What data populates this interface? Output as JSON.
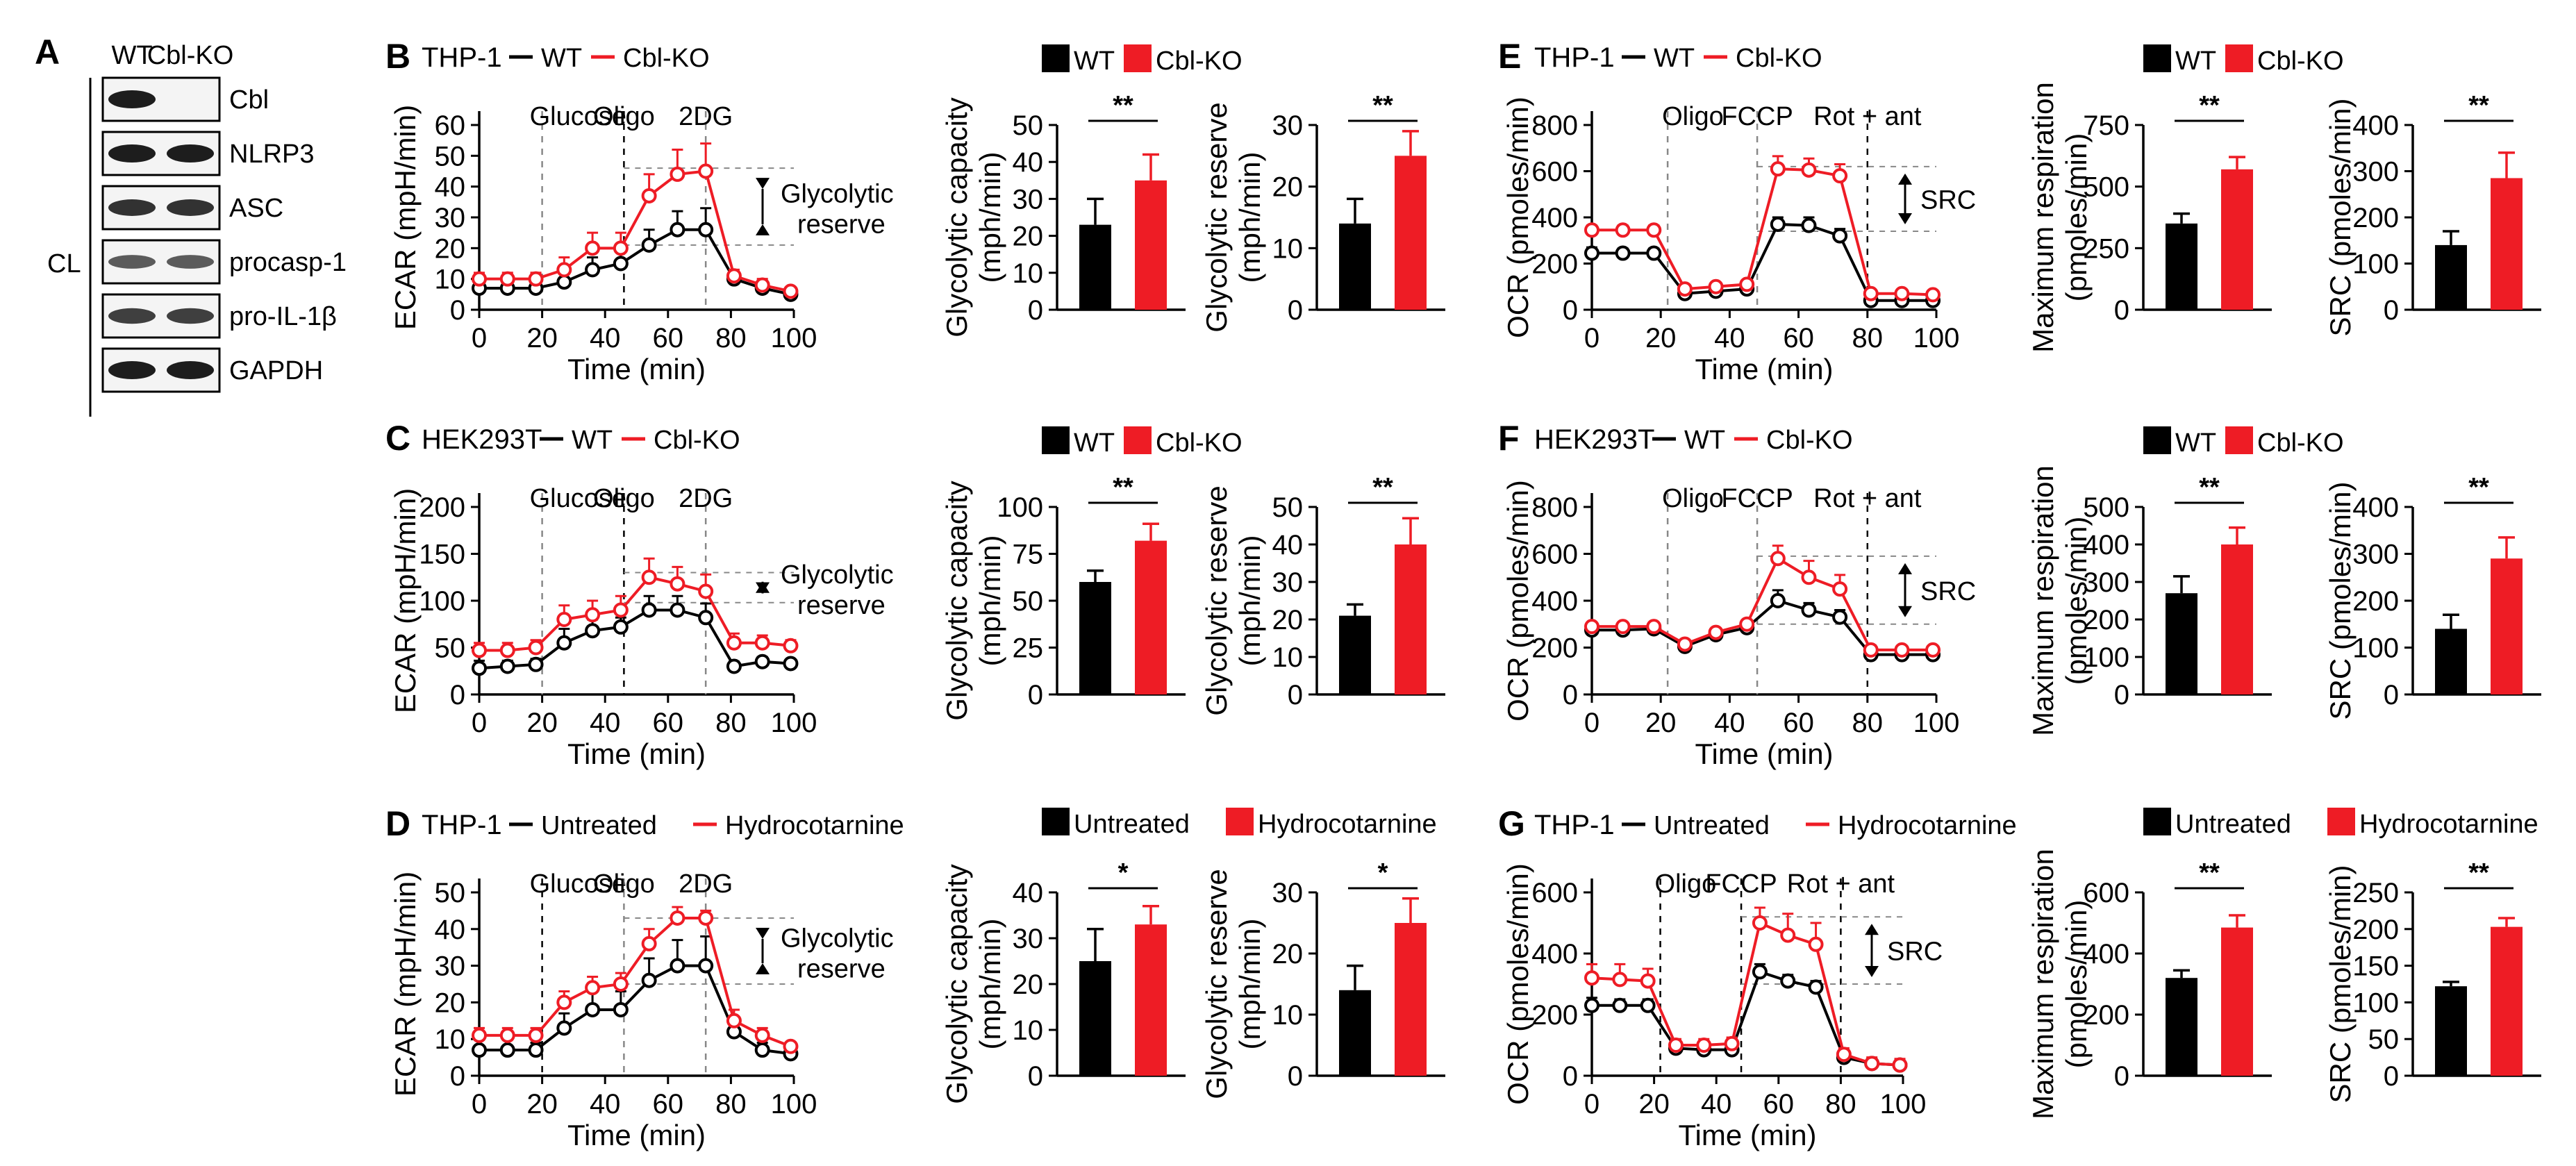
{
  "colors": {
    "wt": "#000000",
    "ko": "#ee1c25",
    "bg": "#ffffff",
    "guide": "#888888"
  },
  "panel_a": {
    "letter": "A",
    "lanes": [
      "WT",
      "Cbl-KO"
    ],
    "side_label": "CL",
    "rows": [
      {
        "label": "Cbl",
        "wt": 1.0,
        "ko": 0.0
      },
      {
        "label": "NLRP3",
        "wt": 1.0,
        "ko": 1.0
      },
      {
        "label": "ASC",
        "wt": 0.85,
        "ko": 0.85
      },
      {
        "label": "procasp-1",
        "wt": 0.55,
        "ko": 0.55
      },
      {
        "label": "pro-IL-1β",
        "wt": 0.75,
        "ko": 0.75
      },
      {
        "label": "GAPDH",
        "wt": 1.0,
        "ko": 1.0
      }
    ]
  },
  "chart_data": [
    {
      "type": "line",
      "id": "B",
      "letter": "B",
      "cell": "THP-1",
      "series_names": [
        "WT",
        "Cbl-KO"
      ],
      "xlabel": "Time (min)",
      "ylabel": "ECAR (mpH/min)",
      "xticks": [
        0,
        20,
        40,
        60,
        80,
        100
      ],
      "yticks": [
        0,
        10,
        20,
        30,
        40,
        50,
        60
      ],
      "xlim": [
        0,
        100
      ],
      "ylim": [
        0,
        60
      ],
      "injections": [
        {
          "label": "Glucose",
          "x": 20,
          "style": "gray"
        },
        {
          "label": "Oligo",
          "x": 46,
          "style": "black"
        },
        {
          "label": "2DG",
          "x": 72,
          "style": "gray"
        }
      ],
      "x": [
        0,
        9,
        18,
        27,
        36,
        45,
        54,
        63,
        72,
        81,
        90,
        99
      ],
      "series": [
        {
          "name": "WT",
          "values": [
            7,
            7,
            7,
            9,
            13,
            15,
            21,
            26,
            26,
            10,
            7,
            5
          ],
          "err": [
            2,
            2,
            2,
            3,
            4,
            4,
            5,
            6,
            7,
            2,
            2,
            1
          ]
        },
        {
          "name": "Cbl-KO",
          "values": [
            10,
            10,
            10,
            13,
            20,
            20,
            37,
            44,
            45,
            11,
            8,
            6
          ],
          "err": [
            2,
            2,
            2,
            4,
            5,
            5,
            7,
            8,
            9,
            2,
            2,
            1
          ]
        }
      ],
      "guides": [
        46,
        21
      ],
      "annotation": [
        "Glycolytic",
        "reserve"
      ]
    },
    {
      "type": "line",
      "id": "C",
      "letter": "C",
      "cell": "HEK293T",
      "series_names": [
        "WT",
        "Cbl-KO"
      ],
      "xlabel": "Time (min)",
      "ylabel": "ECAR (mpH/min)",
      "xticks": [
        0,
        20,
        40,
        60,
        80,
        100
      ],
      "yticks": [
        0,
        50,
        100,
        150,
        200
      ],
      "xlim": [
        0,
        100
      ],
      "ylim": [
        0,
        200
      ],
      "injections": [
        {
          "label": "Glucose",
          "x": 20,
          "style": "gray"
        },
        {
          "label": "Oligo",
          "x": 46,
          "style": "black"
        },
        {
          "label": "2DG",
          "x": 72,
          "style": "gray"
        }
      ],
      "x": [
        0,
        9,
        18,
        27,
        36,
        45,
        54,
        63,
        72,
        81,
        90,
        99
      ],
      "series": [
        {
          "name": "WT",
          "values": [
            28,
            30,
            32,
            55,
            68,
            72,
            90,
            90,
            82,
            30,
            35,
            33
          ],
          "err": [
            8,
            6,
            6,
            15,
            12,
            10,
            15,
            15,
            15,
            5,
            5,
            4
          ]
        },
        {
          "name": "Cbl-KO",
          "values": [
            47,
            47,
            50,
            80,
            85,
            90,
            125,
            118,
            110,
            55,
            55,
            52
          ],
          "err": [
            8,
            8,
            8,
            15,
            15,
            15,
            20,
            18,
            18,
            10,
            8,
            6
          ]
        }
      ],
      "guides": [
        130,
        98
      ],
      "annotation": [
        "Glycolytic",
        "reserve"
      ]
    },
    {
      "type": "line",
      "id": "D",
      "letter": "D",
      "cell": "THP-1",
      "series_names": [
        "Untreated",
        "Hydrocotarnine"
      ],
      "xlabel": "Time (min)",
      "ylabel": "ECAR (mpH/min)",
      "xticks": [
        0,
        20,
        40,
        60,
        80,
        100
      ],
      "yticks": [
        0,
        10,
        20,
        30,
        40,
        50
      ],
      "xlim": [
        0,
        100
      ],
      "ylim": [
        0,
        50
      ],
      "injections": [
        {
          "label": "Glucose",
          "x": 20,
          "style": "black"
        },
        {
          "label": "Oligo",
          "x": 46,
          "style": "gray"
        },
        {
          "label": "2DG",
          "x": 72,
          "style": "gray"
        }
      ],
      "x": [
        0,
        9,
        18,
        27,
        36,
        45,
        54,
        63,
        72,
        81,
        90,
        99
      ],
      "series": [
        {
          "name": "Untreated",
          "values": [
            7,
            7,
            7,
            13,
            18,
            18,
            26,
            30,
            30,
            12,
            7,
            6
          ],
          "err": [
            3,
            3,
            2,
            4,
            5,
            5,
            6,
            7,
            8,
            3,
            2,
            2
          ]
        },
        {
          "name": "Hydrocotarnine",
          "values": [
            11,
            11,
            11,
            20,
            24,
            25,
            36,
            43,
            43,
            15,
            11,
            8
          ],
          "err": [
            2,
            2,
            2,
            3,
            3,
            3,
            4,
            3,
            2,
            3,
            2,
            1
          ]
        }
      ],
      "guides": [
        43,
        25
      ],
      "annotation": [
        "Glycolytic",
        "reserve"
      ]
    },
    {
      "type": "line",
      "id": "E",
      "letter": "E",
      "cell": "THP-1",
      "series_names": [
        "WT",
        "Cbl-KO"
      ],
      "xlabel": "Time (min)",
      "ylabel": "OCR (pmoles/min)",
      "xticks": [
        0,
        20,
        40,
        60,
        80,
        100
      ],
      "yticks": [
        0,
        200,
        400,
        600,
        800
      ],
      "xlim": [
        0,
        100
      ],
      "ylim": [
        0,
        800
      ],
      "injections": [
        {
          "label": "Oligo",
          "x": 22,
          "style": "gray"
        },
        {
          "label": "FCCP",
          "x": 48,
          "style": "gray"
        },
        {
          "label": "Rot + ant",
          "x": 80,
          "style": "black"
        }
      ],
      "x": [
        0,
        9,
        18,
        27,
        36,
        45,
        54,
        63,
        72,
        81,
        90,
        99
      ],
      "series": [
        {
          "name": "WT",
          "values": [
            245,
            245,
            245,
            70,
            80,
            90,
            370,
            365,
            320,
            40,
            40,
            40
          ],
          "err": [
            25,
            20,
            20,
            10,
            10,
            10,
            30,
            35,
            30,
            10,
            10,
            10
          ]
        },
        {
          "name": "Cbl-KO",
          "values": [
            345,
            345,
            345,
            90,
            100,
            110,
            610,
            605,
            580,
            70,
            70,
            65
          ],
          "err": [
            20,
            20,
            20,
            15,
            15,
            15,
            55,
            50,
            50,
            15,
            15,
            10
          ]
        }
      ],
      "guides": [
        620,
        340
      ],
      "annotation": [
        "SRC"
      ]
    },
    {
      "type": "line",
      "id": "F",
      "letter": "F",
      "cell": "HEK293T",
      "series_names": [
        "WT",
        "Cbl-KO"
      ],
      "xlabel": "Time (min)",
      "ylabel": "OCR (pmoles/min)",
      "xticks": [
        0,
        20,
        40,
        60,
        80,
        100
      ],
      "yticks": [
        0,
        200,
        400,
        600,
        800
      ],
      "xlim": [
        0,
        100
      ],
      "ylim": [
        0,
        800
      ],
      "injections": [
        {
          "label": "Oligo",
          "x": 22,
          "style": "gray"
        },
        {
          "label": "FCCP",
          "x": 48,
          "style": "gray"
        },
        {
          "label": "Rot + ant",
          "x": 80,
          "style": "black"
        }
      ],
      "x": [
        0,
        9,
        18,
        27,
        36,
        45,
        54,
        63,
        72,
        81,
        90,
        99
      ],
      "series": [
        {
          "name": "WT",
          "values": [
            275,
            275,
            280,
            205,
            255,
            285,
            400,
            360,
            330,
            170,
            170,
            170
          ],
          "err": [
            15,
            15,
            15,
            15,
            15,
            15,
            45,
            30,
            30,
            15,
            15,
            15
          ]
        },
        {
          "name": "Cbl-KO",
          "values": [
            290,
            290,
            290,
            215,
            265,
            300,
            580,
            500,
            450,
            190,
            190,
            190
          ],
          "err": [
            15,
            15,
            15,
            15,
            15,
            15,
            55,
            70,
            60,
            20,
            15,
            15
          ]
        }
      ],
      "guides": [
        590,
        300
      ],
      "annotation": [
        "SRC"
      ]
    },
    {
      "type": "line",
      "id": "G",
      "letter": "G",
      "cell": "THP-1",
      "series_names": [
        "Untreated",
        "Hydrocotarnine"
      ],
      "xlabel": "Time (min)",
      "ylabel": "OCR (pmoles/min)",
      "xticks": [
        0,
        20,
        40,
        60,
        80,
        100
      ],
      "yticks": [
        0,
        200,
        400,
        600
      ],
      "xlim": [
        0,
        100
      ],
      "ylim": [
        0,
        600
      ],
      "injections": [
        {
          "label": "Oligo",
          "x": 22,
          "style": "black"
        },
        {
          "label": "FCCP",
          "x": 48,
          "style": "black"
        },
        {
          "label": "Rot + ant",
          "x": 80,
          "style": "black"
        }
      ],
      "x": [
        0,
        9,
        18,
        27,
        36,
        45,
        54,
        63,
        72,
        81,
        90,
        99
      ],
      "series": [
        {
          "name": "Untreated",
          "values": [
            230,
            230,
            230,
            90,
            85,
            85,
            340,
            310,
            290,
            60,
            40,
            35
          ],
          "err": [
            25,
            20,
            20,
            20,
            20,
            20,
            25,
            20,
            20,
            15,
            15,
            15
          ]
        },
        {
          "name": "Hydrocotarnine",
          "values": [
            320,
            315,
            310,
            100,
            100,
            105,
            500,
            460,
            430,
            70,
            40,
            35
          ],
          "err": [
            45,
            50,
            40,
            20,
            20,
            20,
            50,
            70,
            70,
            20,
            20,
            20
          ]
        }
      ],
      "guides": [
        520,
        300
      ],
      "annotation": [
        "SRC"
      ]
    },
    {
      "type": "bar",
      "id": "B1",
      "categories": [
        "WT",
        "Cbl-KO"
      ],
      "values": [
        23,
        35
      ],
      "err": [
        7,
        7
      ],
      "ylabel": [
        "Glycolytic capacity",
        "(mph/min)"
      ],
      "ylim": [
        0,
        50
      ],
      "yticks": [
        0,
        10,
        20,
        30,
        40,
        50
      ],
      "sig": "**"
    },
    {
      "type": "bar",
      "id": "B2",
      "categories": [
        "WT",
        "Cbl-KO"
      ],
      "values": [
        14,
        25
      ],
      "err": [
        4,
        4
      ],
      "ylabel": [
        "Glycolytic reserve",
        "(mph/min)"
      ],
      "ylim": [
        0,
        30
      ],
      "yticks": [
        0,
        10,
        20,
        30
      ],
      "sig": "**"
    },
    {
      "type": "bar",
      "id": "C1",
      "categories": [
        "WT",
        "Cbl-KO"
      ],
      "values": [
        60,
        82
      ],
      "err": [
        6,
        9
      ],
      "ylabel": [
        "Glycolytic capacity",
        "(mph/min)"
      ],
      "ylim": [
        0,
        100
      ],
      "yticks": [
        0,
        25,
        50,
        75,
        100
      ],
      "sig": "**"
    },
    {
      "type": "bar",
      "id": "C2",
      "categories": [
        "WT",
        "Cbl-KO"
      ],
      "values": [
        21,
        40
      ],
      "err": [
        3,
        7
      ],
      "ylabel": [
        "Glycolytic reserve",
        "(mph/min)"
      ],
      "ylim": [
        0,
        50
      ],
      "yticks": [
        0,
        10,
        20,
        30,
        40,
        50
      ],
      "sig": "**"
    },
    {
      "type": "bar",
      "id": "D1",
      "categories": [
        "Untreated",
        "Hydrocotarnine"
      ],
      "values": [
        25,
        33
      ],
      "err": [
        7,
        4
      ],
      "ylabel": [
        "Glycolytic capacity",
        "(mph/min)"
      ],
      "ylim": [
        0,
        40
      ],
      "yticks": [
        0,
        10,
        20,
        30,
        40
      ],
      "sig": "*"
    },
    {
      "type": "bar",
      "id": "D2",
      "categories": [
        "Untreated",
        "Hydrocotarnine"
      ],
      "values": [
        14,
        25
      ],
      "err": [
        4,
        4
      ],
      "ylabel": [
        "Glycolytic reserve",
        "(mph/min)"
      ],
      "ylim": [
        0,
        30
      ],
      "yticks": [
        0,
        10,
        20,
        30
      ],
      "sig": "*"
    },
    {
      "type": "bar",
      "id": "E1",
      "categories": [
        "WT",
        "Cbl-KO"
      ],
      "values": [
        350,
        570
      ],
      "err": [
        40,
        50
      ],
      "ylabel": [
        "Maximum respiration",
        "(pmoles/min)"
      ],
      "ylim": [
        0,
        750
      ],
      "yticks": [
        0,
        250,
        500,
        750
      ],
      "sig": "**"
    },
    {
      "type": "bar",
      "id": "E2",
      "categories": [
        "WT",
        "Cbl-KO"
      ],
      "values": [
        140,
        285
      ],
      "err": [
        30,
        55
      ],
      "ylabel": [
        "SRC (pmoles/min)"
      ],
      "ylim": [
        0,
        400
      ],
      "yticks": [
        0,
        100,
        200,
        300,
        400
      ],
      "sig": "**"
    },
    {
      "type": "bar",
      "id": "F1",
      "categories": [
        "WT",
        "Cbl-KO"
      ],
      "values": [
        270,
        400
      ],
      "err": [
        45,
        45
      ],
      "ylabel": [
        "Maximum respiration",
        "(pmoles/min)"
      ],
      "ylim": [
        0,
        500
      ],
      "yticks": [
        0,
        100,
        200,
        300,
        400,
        500
      ],
      "sig": "**"
    },
    {
      "type": "bar",
      "id": "F2",
      "categories": [
        "WT",
        "Cbl-KO"
      ],
      "values": [
        140,
        290
      ],
      "err": [
        30,
        45
      ],
      "ylabel": [
        "SRC (pmoles/min)"
      ],
      "ylim": [
        0,
        400
      ],
      "yticks": [
        0,
        100,
        200,
        300,
        400
      ],
      "sig": "**"
    },
    {
      "type": "bar",
      "id": "G1",
      "categories": [
        "Untreated",
        "Hydrocotarnine"
      ],
      "values": [
        320,
        485
      ],
      "err": [
        25,
        40
      ],
      "ylabel": [
        "Maximum respiration",
        "(pmoles/min)"
      ],
      "ylim": [
        0,
        600
      ],
      "yticks": [
        0,
        200,
        400,
        600
      ],
      "sig": "**"
    },
    {
      "type": "bar",
      "id": "G2",
      "categories": [
        "Untreated",
        "Hydrocotarnine"
      ],
      "values": [
        122,
        203
      ],
      "err": [
        6,
        12
      ],
      "ylabel": [
        "SRC (pmoles/min)"
      ],
      "ylim": [
        0,
        250
      ],
      "yticks": [
        0,
        50,
        100,
        150,
        200,
        250
      ],
      "sig": "**"
    }
  ]
}
